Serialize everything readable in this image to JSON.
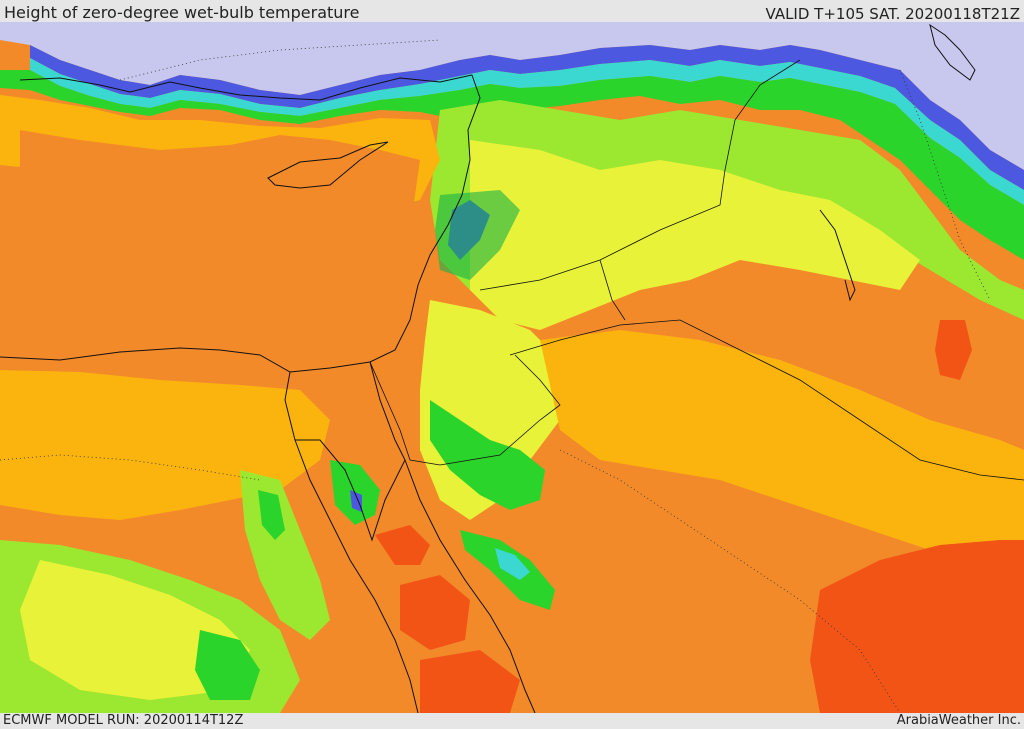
{
  "header": {
    "title": "Height of zero-degree wet-bulb temperature",
    "valid": "VALID T+105 SAT. 20200118T21Z"
  },
  "footer": {
    "model_run": "ECMWF MODEL RUN: 20200114T12Z",
    "credit": "ArabiaWeather Inc."
  },
  "map": {
    "palette": {
      "below_ground": "#c8c8ee",
      "lowest": "#4c58e0",
      "low": "#1fa6e8",
      "cyan": "#3ad8d0",
      "green_dark": "#18b24a",
      "green": "#2ad42a",
      "lime": "#9ce830",
      "yellow": "#e8f238",
      "gold": "#fbb40e",
      "orange": "#f28a2a",
      "red_orange": "#f25416"
    }
  }
}
